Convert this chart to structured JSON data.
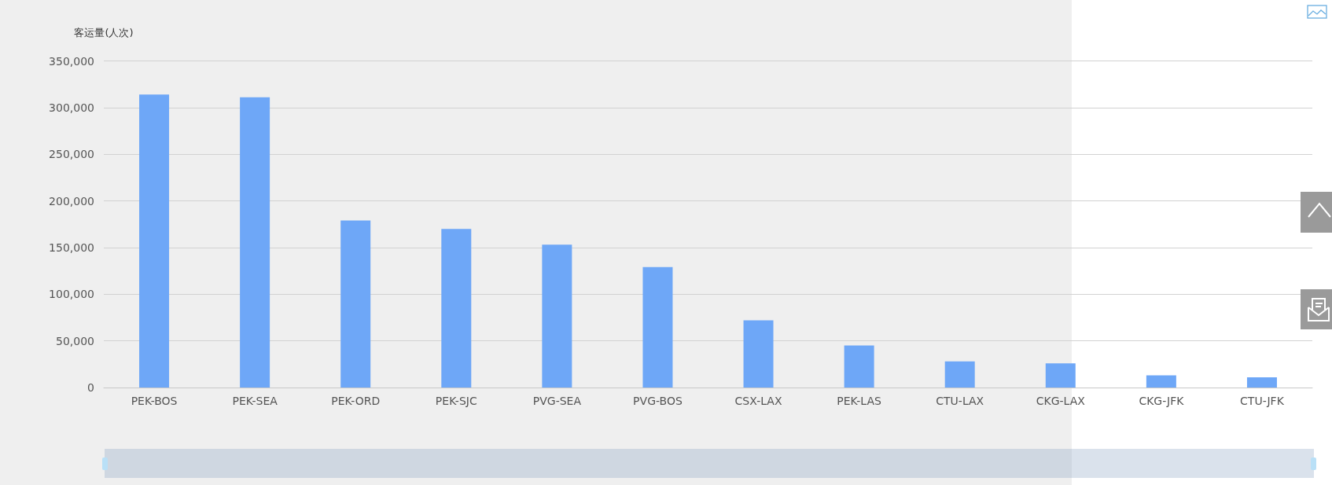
{
  "chart_data": {
    "type": "bar",
    "ylabel": "客运量(人次)",
    "categories": [
      "PEK-BOS",
      "PEK-SEA",
      "PEK-ORD",
      "PEK-SJC",
      "PVG-SEA",
      "PVG-BOS",
      "CSX-LAX",
      "PEK-LAS",
      "CTU-LAX",
      "CKG-LAX",
      "CKG-JFK",
      "CTU-JFK"
    ],
    "values": [
      314000,
      311000,
      179000,
      170000,
      153000,
      129000,
      72000,
      45000,
      28000,
      26000,
      13000,
      11000
    ],
    "color": "#6ea7f7",
    "ylim": [
      0,
      350000
    ],
    "yticks": [
      0,
      {
        "value": 50000,
        "label": "50,000"
      },
      {
        "value": 100000,
        "label": "100,000"
      },
      {
        "value": 150000,
        "label": "150,000"
      },
      {
        "value": 200000,
        "label": "200,000"
      },
      {
        "value": 250000,
        "label": "250,000"
      },
      {
        "value": 300000,
        "label": "300,000"
      },
      {
        "value": 350000,
        "label": "350,000"
      }
    ],
    "grid": "y"
  }
}
